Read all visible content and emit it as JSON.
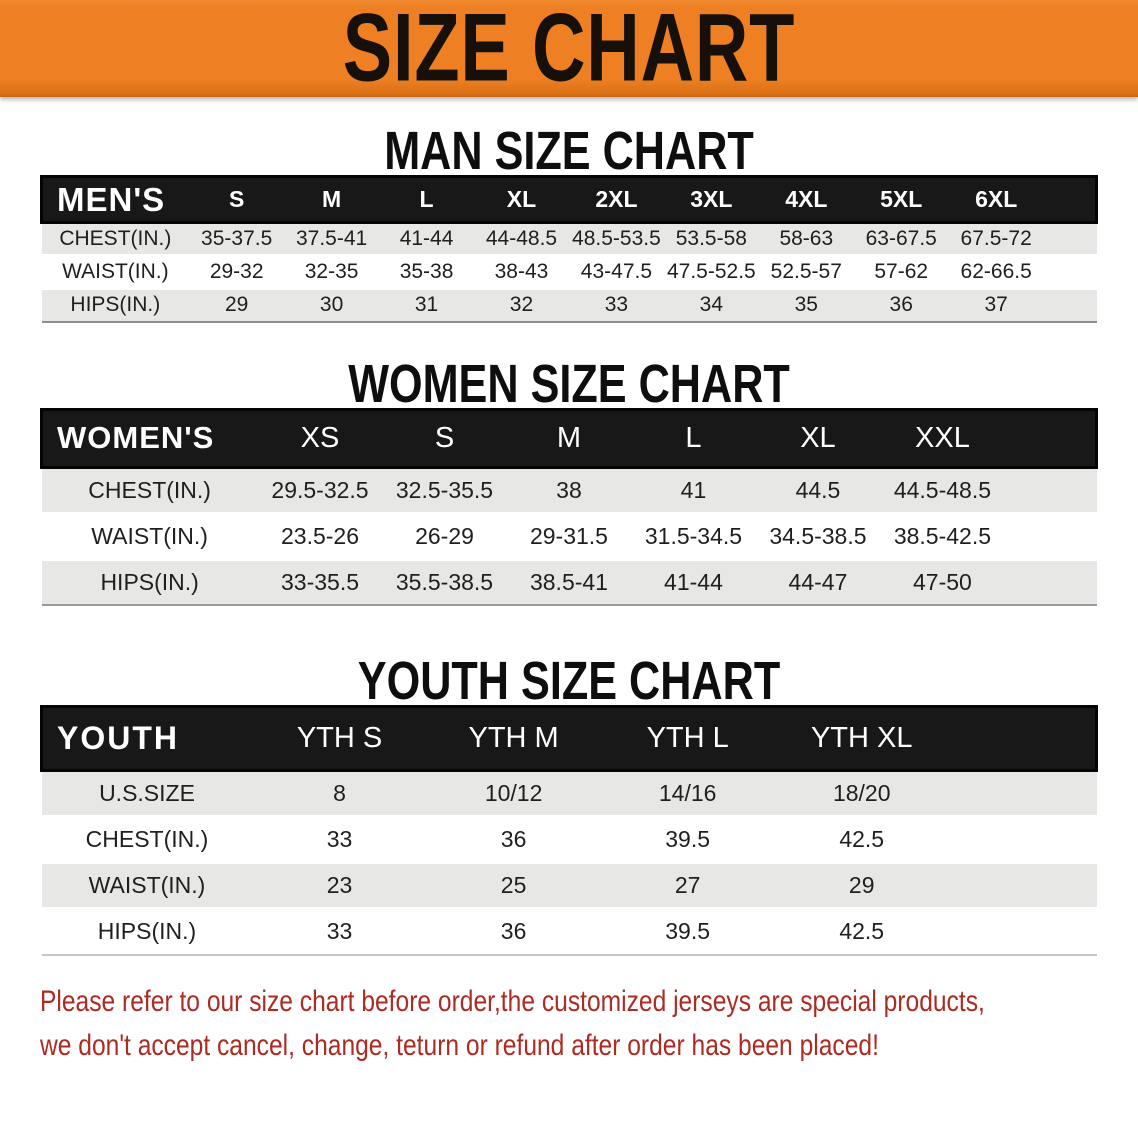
{
  "banner": {
    "title": "SIZE CHART",
    "background_color": "#ee7f23",
    "text_color": "#17100a"
  },
  "chart_data": [
    {
      "type": "table",
      "title": "MAN SIZE CHART",
      "corner_label": "MEN'S",
      "columns": [
        "S",
        "M",
        "L",
        "XL",
        "2XL",
        "3XL",
        "4XL",
        "5XL",
        "6XL"
      ],
      "rows": [
        {
          "label": "CHEST(IN.)",
          "values": [
            "35-37.5",
            "37.5-41",
            "41-44",
            "44-48.5",
            "48.5-53.5",
            "53.5-58",
            "58-63",
            "63-67.5",
            "67.5-72"
          ]
        },
        {
          "label": "WAIST(IN.)",
          "values": [
            "29-32",
            "32-35",
            "35-38",
            "38-43",
            "43-47.5",
            "47.5-52.5",
            "52.5-57",
            "57-62",
            "62-66.5"
          ]
        },
        {
          "label": "HIPS(IN.)",
          "values": [
            "29",
            "30",
            "31",
            "32",
            "33",
            "34",
            "35",
            "36",
            "37"
          ]
        }
      ],
      "header_bg": "#181818",
      "stripe_bg": "#e7e7e6"
    },
    {
      "type": "table",
      "title": "WOMEN SIZE CHART",
      "corner_label": "WOMEN'S",
      "columns": [
        "XS",
        "S",
        "M",
        "L",
        "XL",
        "XXL"
      ],
      "rows": [
        {
          "label": "CHEST(IN.)",
          "values": [
            "29.5-32.5",
            "32.5-35.5",
            "38",
            "41",
            "44.5",
            "44.5-48.5"
          ]
        },
        {
          "label": "WAIST(IN.)",
          "values": [
            "23.5-26",
            "26-29",
            "29-31.5",
            "31.5-34.5",
            "34.5-38.5",
            "38.5-42.5"
          ]
        },
        {
          "label": "HIPS(IN.)",
          "values": [
            "33-35.5",
            "35.5-38.5",
            "38.5-41",
            "41-44",
            "44-47",
            "47-50"
          ]
        }
      ],
      "header_bg": "#181818",
      "stripe_bg": "#e7e7e6"
    },
    {
      "type": "table",
      "title": "YOUTH SIZE CHART",
      "corner_label": "YOUTH",
      "columns": [
        "YTH S",
        "YTH M",
        "YTH L",
        "YTH XL"
      ],
      "rows": [
        {
          "label": "U.S.SIZE",
          "values": [
            "8",
            "10/12",
            "14/16",
            "18/20"
          ]
        },
        {
          "label": "CHEST(IN.)",
          "values": [
            "33",
            "36",
            "39.5",
            "42.5"
          ]
        },
        {
          "label": "WAIST(IN.)",
          "values": [
            "23",
            "25",
            "27",
            "29"
          ]
        },
        {
          "label": "HIPS(IN.)",
          "values": [
            "33",
            "36",
            "39.5",
            "42.5"
          ]
        }
      ],
      "header_bg": "#181818",
      "stripe_bg": "#e7e7e6"
    }
  ],
  "footer": {
    "line1": "Please refer to our size chart before order,the customized jerseys are special products,",
    "line2": "we don't accept cancel, change, teturn or refund after order has been placed!",
    "text_color": "#ac2b22"
  }
}
